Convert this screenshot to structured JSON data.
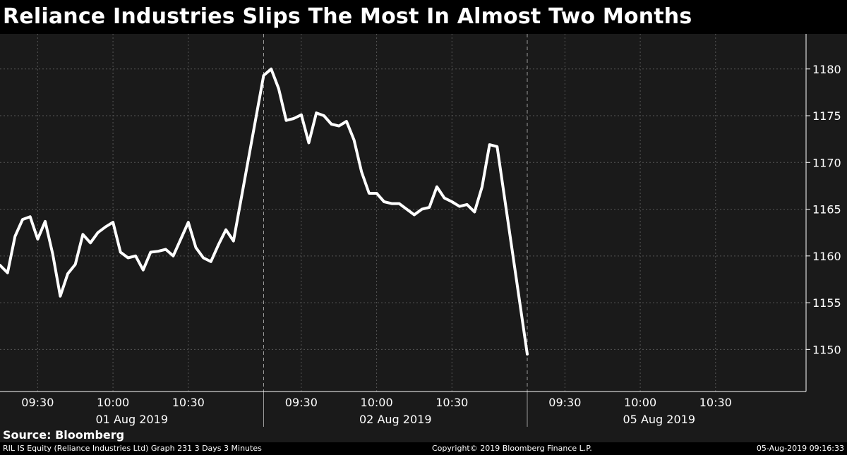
{
  "title": "Reliance Industries Slips The Most In Almost Two Months",
  "source": "Source: Bloomberg",
  "footer": {
    "left": "RIL IS Equity (Reliance Industries Ltd) Graph 231 3 Days 3 Minutes",
    "center": "Copyright© 2019 Bloomberg Finance L.P.",
    "right": "05-Aug-2019 09:16:33"
  },
  "colors": {
    "background": "#000000",
    "plot_background": "#1a1a1a",
    "line": "#ffffff",
    "grid": "#555555"
  },
  "chart_data": {
    "type": "line",
    "title": "Reliance Industries Slips The Most In Almost Two Months",
    "xlabel": "",
    "ylabel": "",
    "ylim": [
      1145.5,
      1183
    ],
    "y_ticks": [
      1150,
      1155,
      1160,
      1165,
      1170,
      1175,
      1180
    ],
    "y_axis_position": "right",
    "grid": true,
    "days": [
      {
        "label": "01 Aug 2019",
        "time_ticks": [
          "09:30",
          "10:00",
          "10:30"
        ]
      },
      {
        "label": "02 Aug 2019",
        "time_ticks": [
          "09:30",
          "10:00",
          "10:30"
        ]
      },
      {
        "label": "05 Aug 2019",
        "time_ticks": [
          "09:30",
          "10:00",
          "10:30"
        ]
      }
    ],
    "series": [
      {
        "points": [
          [
            "01 Aug 2019 09:15",
            1159.0
          ],
          [
            "01 Aug 2019 09:18",
            1158.2
          ],
          [
            "01 Aug 2019 09:21",
            1162.1
          ],
          [
            "01 Aug 2019 09:24",
            1163.9
          ],
          [
            "01 Aug 2019 09:27",
            1164.2
          ],
          [
            "01 Aug 2019 09:30",
            1161.8
          ],
          [
            "01 Aug 2019 09:33",
            1163.7
          ],
          [
            "01 Aug 2019 09:36",
            1160.2
          ],
          [
            "01 Aug 2019 09:39",
            1155.7
          ],
          [
            "01 Aug 2019 09:42",
            1158.1
          ],
          [
            "01 Aug 2019 09:45",
            1159.1
          ],
          [
            "01 Aug 2019 09:48",
            1162.3
          ],
          [
            "01 Aug 2019 09:51",
            1161.4
          ],
          [
            "01 Aug 2019 09:54",
            1162.5
          ],
          [
            "01 Aug 2019 09:57",
            1163.1
          ],
          [
            "01 Aug 2019 10:00",
            1163.6
          ],
          [
            "01 Aug 2019 10:03",
            1160.4
          ],
          [
            "01 Aug 2019 10:06",
            1159.8
          ],
          [
            "01 Aug 2019 10:09",
            1160.0
          ],
          [
            "01 Aug 2019 10:12",
            1158.5
          ],
          [
            "01 Aug 2019 10:15",
            1160.4
          ],
          [
            "01 Aug 2019 10:18",
            1160.5
          ],
          [
            "01 Aug 2019 10:21",
            1160.7
          ],
          [
            "01 Aug 2019 10:24",
            1160.0
          ],
          [
            "01 Aug 2019 10:27",
            1161.8
          ],
          [
            "01 Aug 2019 10:30",
            1163.6
          ],
          [
            "01 Aug 2019 10:33",
            1160.9
          ],
          [
            "01 Aug 2019 10:36",
            1159.8
          ],
          [
            "01 Aug 2019 10:39",
            1159.4
          ],
          [
            "01 Aug 2019 10:42",
            1161.2
          ],
          [
            "01 Aug 2019 10:45",
            1162.8
          ],
          [
            "01 Aug 2019 10:48",
            1161.6
          ],
          [
            "02 Aug 2019 09:15",
            1179.3
          ],
          [
            "02 Aug 2019 09:18",
            1180.0
          ],
          [
            "02 Aug 2019 09:21",
            1177.9
          ],
          [
            "02 Aug 2019 09:24",
            1174.5
          ],
          [
            "02 Aug 2019 09:27",
            1174.7
          ],
          [
            "02 Aug 2019 09:30",
            1175.1
          ],
          [
            "02 Aug 2019 09:33",
            1172.1
          ],
          [
            "02 Aug 2019 09:36",
            1175.3
          ],
          [
            "02 Aug 2019 09:39",
            1175.0
          ],
          [
            "02 Aug 2019 09:42",
            1174.1
          ],
          [
            "02 Aug 2019 09:45",
            1173.9
          ],
          [
            "02 Aug 2019 09:48",
            1174.4
          ],
          [
            "02 Aug 2019 09:51",
            1172.4
          ],
          [
            "02 Aug 2019 09:54",
            1169.0
          ],
          [
            "02 Aug 2019 09:57",
            1166.7
          ],
          [
            "02 Aug 2019 10:00",
            1166.7
          ],
          [
            "02 Aug 2019 10:03",
            1165.8
          ],
          [
            "02 Aug 2019 10:06",
            1165.6
          ],
          [
            "02 Aug 2019 10:09",
            1165.6
          ],
          [
            "02 Aug 2019 10:12",
            1165.0
          ],
          [
            "02 Aug 2019 10:15",
            1164.4
          ],
          [
            "02 Aug 2019 10:18",
            1165.0
          ],
          [
            "02 Aug 2019 10:21",
            1165.2
          ],
          [
            "02 Aug 2019 10:24",
            1167.4
          ],
          [
            "02 Aug 2019 10:27",
            1166.2
          ],
          [
            "02 Aug 2019 10:30",
            1165.8
          ],
          [
            "02 Aug 2019 10:33",
            1165.3
          ],
          [
            "02 Aug 2019 10:36",
            1165.5
          ],
          [
            "02 Aug 2019 10:39",
            1164.7
          ],
          [
            "02 Aug 2019 10:42",
            1167.4
          ],
          [
            "02 Aug 2019 10:45",
            1171.9
          ],
          [
            "02 Aug 2019 10:48",
            1171.7
          ],
          [
            "05 Aug 2019 09:15",
            1149.5
          ]
        ]
      }
    ]
  }
}
